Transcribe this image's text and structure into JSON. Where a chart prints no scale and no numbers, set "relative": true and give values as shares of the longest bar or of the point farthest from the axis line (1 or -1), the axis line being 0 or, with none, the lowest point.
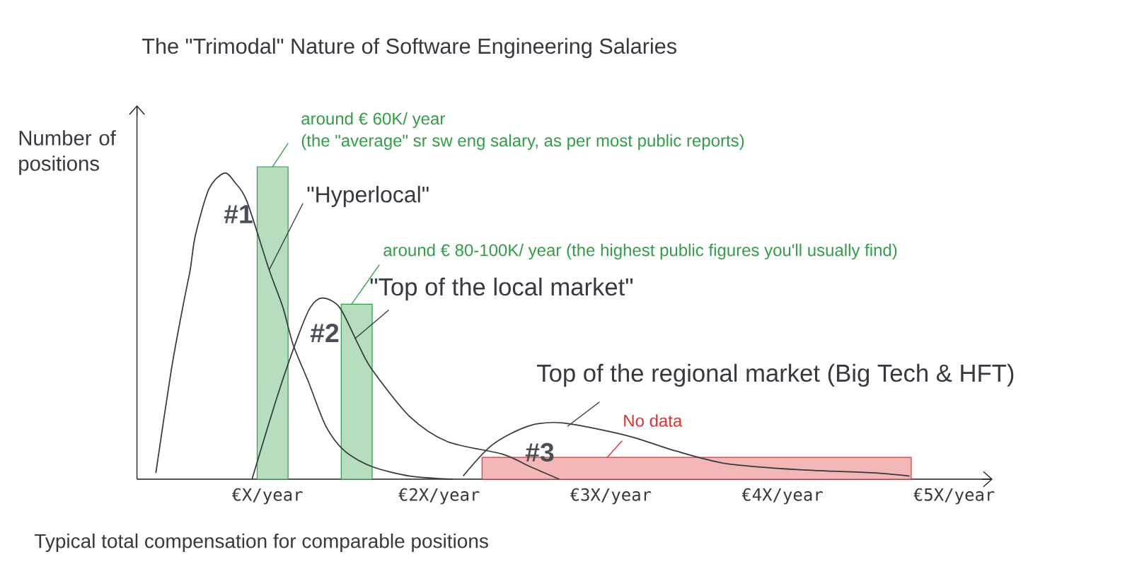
{
  "chart_data": {
    "type": "line",
    "title": "The \"Trimodal\" Nature of Software Engineering Salaries",
    "xlabel": "Typical total compensation for comparable positions",
    "ylabel": "Number of positions",
    "relative": true,
    "xlim": [
      0.24,
      5.22
    ],
    "xticks": [
      {
        "value": 1,
        "label": "€X/year"
      },
      {
        "value": 2,
        "label": "€2X/year"
      },
      {
        "value": 3,
        "label": "€3X/year"
      },
      {
        "value": 4,
        "label": "€4X/year"
      },
      {
        "value": 5,
        "label": "€5X/year"
      }
    ],
    "series": [
      {
        "color": "#343a40",
        "x": [
          0.35,
          0.44,
          0.51,
          0.55,
          0.58,
          0.66,
          0.75,
          0.81,
          0.88,
          1.01,
          1.09,
          1.15,
          1.24,
          1.34,
          1.45,
          1.61,
          1.83,
          2.08
        ],
        "values": [
          0.02,
          0.35,
          0.56,
          0.67,
          0.78,
          0.93,
          0.98,
          0.95,
          0.89,
          0.67,
          0.55,
          0.43,
          0.31,
          0.17,
          0.09,
          0.04,
          0.01,
          0
        ]
      },
      {
        "color": "#343a40",
        "x": [
          0.91,
          1.06,
          1.18,
          1.25,
          1.32,
          1.42,
          1.53,
          1.61,
          1.83,
          2.05,
          2.37,
          2.53,
          2.7
        ],
        "values": [
          0,
          0.27,
          0.46,
          0.55,
          0.58,
          0.55,
          0.43,
          0.35,
          0.2,
          0.12,
          0.08,
          0.04,
          0
        ]
      },
      {
        "color": "#343a40",
        "x": [
          2.14,
          2.31,
          2.52,
          2.72,
          3.09,
          3.38,
          3.67,
          4.1,
          4.54,
          4.74
        ],
        "values": [
          0.01,
          0.11,
          0.17,
          0.18,
          0.14,
          0.09,
          0.05,
          0.03,
          0.02,
          0.01
        ]
      },
      {
        "type": "bar",
        "color": "#2f9e44",
        "x": [
          1.03,
          1.52
        ],
        "values": [
          1,
          0.56
        ]
      },
      {
        "type": "area",
        "color": "#e03131",
        "x": [
          2.25,
          4.75
        ],
        "values": [
          0.07,
          0.07
        ]
      }
    ],
    "annotations": [
      "#1",
      "#2",
      "#3",
      {
        "text": "around € 60K/ year",
        "x": 1.03,
        "y": 1
      },
      "(the \"average\" sr sw eng salary, as per most public reports)",
      {
        "text": "\"Hyperlocal\"",
        "x": 1.01,
        "y": 0.67
      },
      {
        "text": "around € 80-100K/ year (the highest public figures you'll usually find)",
        "x": 1.49,
        "y": 0.56
      },
      {
        "text": "\"Top of the local market\"",
        "x": 1.51,
        "y": 0.45
      },
      {
        "text": "Top of the regional market (Big Tech & HFT)",
        "x": 2.75,
        "y": 0.17
      },
      {
        "text": "No data",
        "x": 2.98,
        "y": 0.07
      }
    ]
  }
}
